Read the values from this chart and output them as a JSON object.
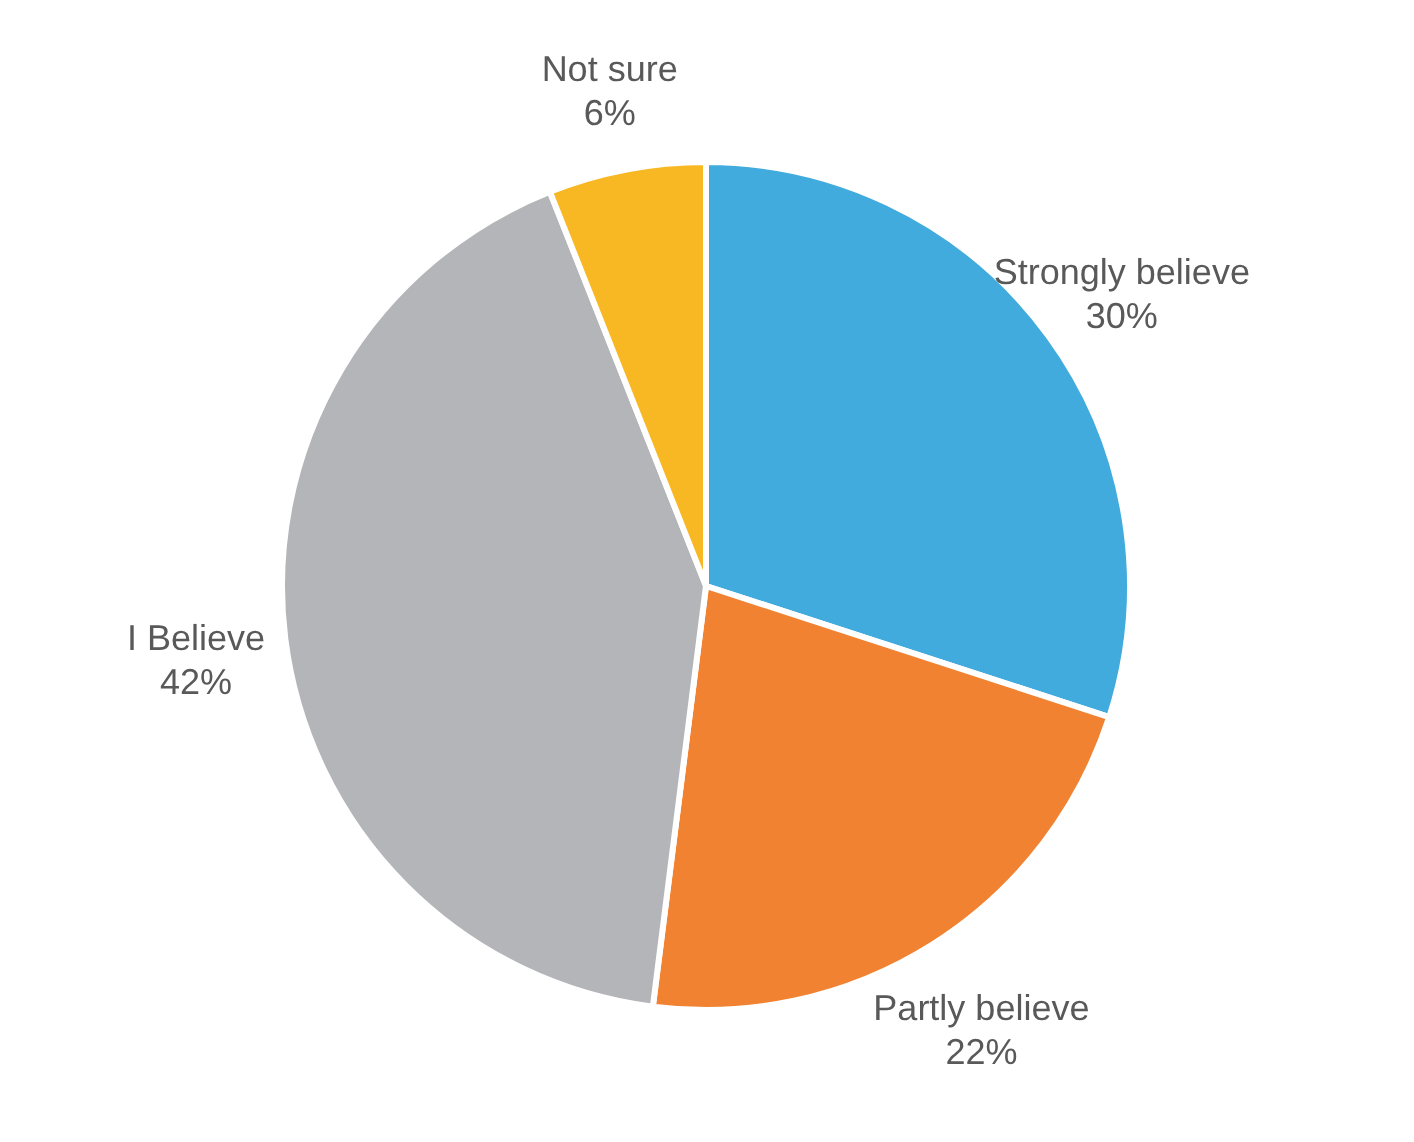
{
  "chart_data": {
    "type": "pie",
    "categories": [
      "Strongly believe",
      "Partly believe",
      "I Believe",
      "Not sure"
    ],
    "values": [
      30,
      22,
      42,
      6
    ],
    "value_labels": [
      "30%",
      "22%",
      "42%",
      "6%"
    ],
    "colors": [
      "#41abdd",
      "#f08231",
      "#b4b5b8",
      "#f8b823"
    ],
    "legend": false
  }
}
